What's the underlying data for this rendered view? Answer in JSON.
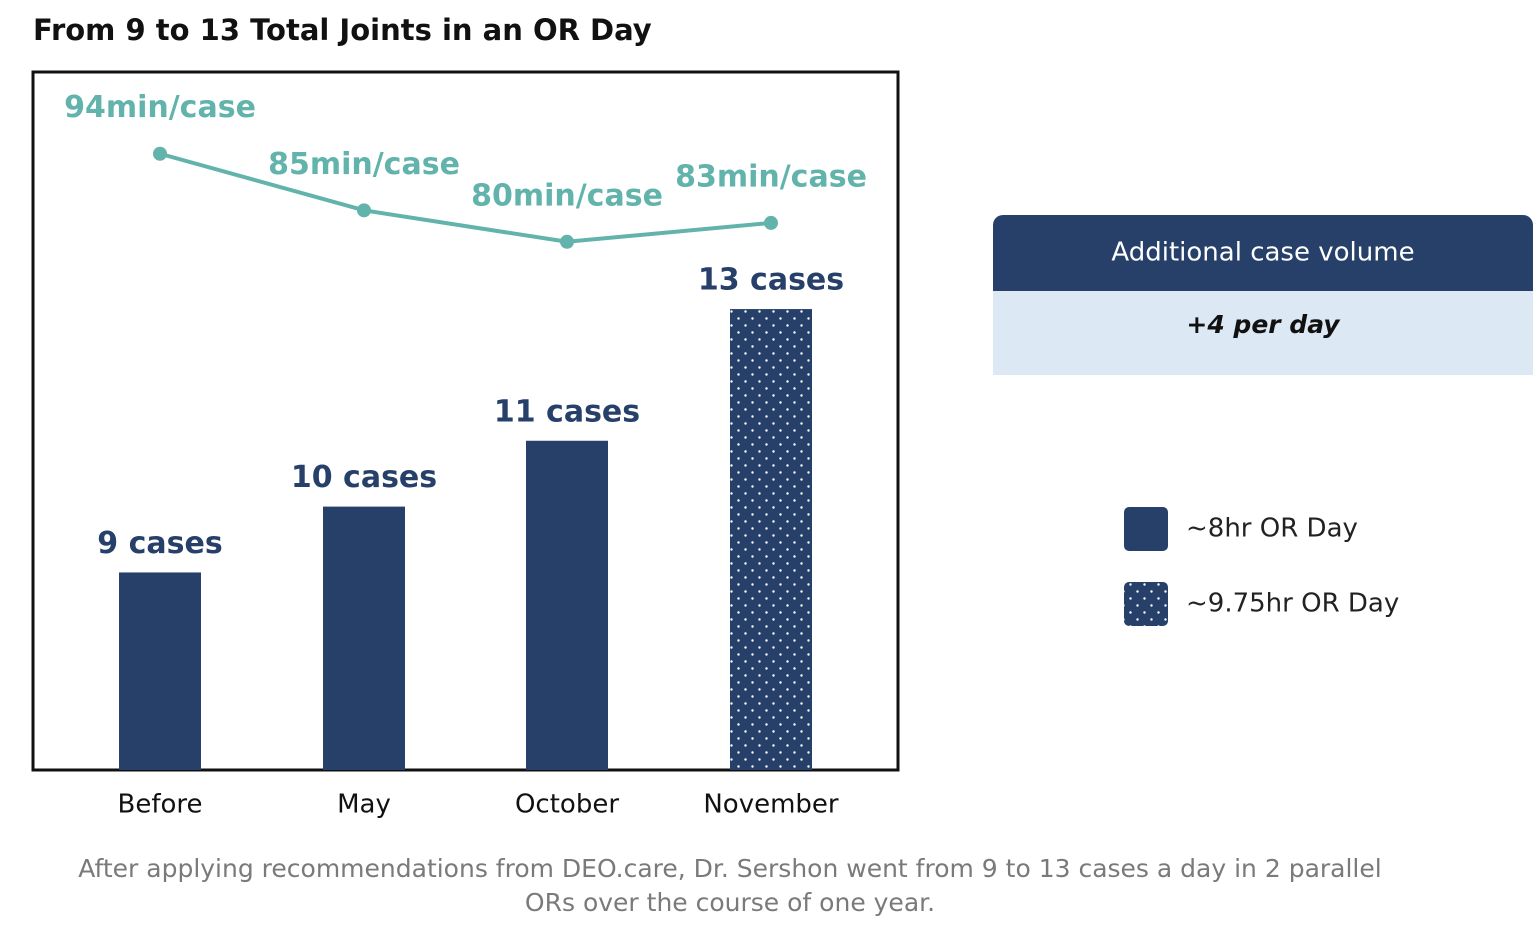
{
  "chart_data": {
    "type": "bar",
    "title": "From 9 to 13 Total Joints in an OR Day",
    "categories": [
      "Before",
      "May",
      "October",
      "November"
    ],
    "series": [
      {
        "name": "~8hr OR Day",
        "color": "#27406a",
        "pattern": "solid",
        "values": [
          9,
          10,
          11,
          null
        ],
        "value_labels": [
          "9 cases",
          "10 cases",
          "11 cases",
          null
        ]
      },
      {
        "name": "~9.75hr OR Day",
        "color": "#27406a",
        "pattern": "dots",
        "values": [
          null,
          null,
          null,
          13
        ],
        "value_labels": [
          null,
          null,
          null,
          "13 cases"
        ]
      },
      {
        "type": "line",
        "axis": "y2",
        "color": "#62b3ac",
        "values": [
          94,
          85,
          80,
          83
        ],
        "value_labels": [
          "94min/case",
          "85min/case",
          "80min/case",
          "83min/case"
        ]
      }
    ],
    "ylim": [
      6,
      16.6
    ],
    "y2lim": [
      -4,
      107
    ],
    "callout": {
      "header": "Additional case volume",
      "value": "+4 per day"
    },
    "note": "After applying recommendations from DEO.care, Dr. Sershon went from 9 to 13 cases a day in 2 parallel ORs over the course of one year."
  }
}
